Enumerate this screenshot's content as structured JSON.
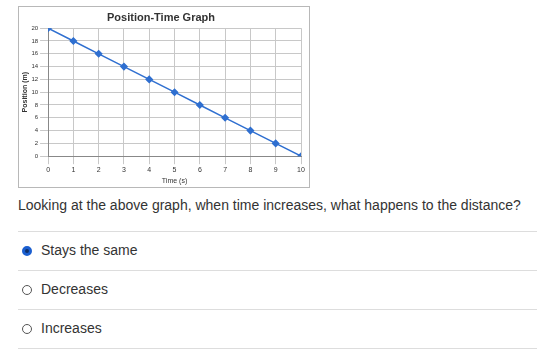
{
  "chart_data": {
    "type": "line",
    "title": "Position-Time Graph",
    "x_label": "Time (s)",
    "y_label": "Position (m)",
    "x": [
      0,
      1,
      2,
      3,
      4,
      5,
      6,
      7,
      8,
      9,
      10
    ],
    "values": [
      20,
      18,
      16,
      14,
      12,
      10,
      8,
      6,
      4,
      2,
      0
    ],
    "color": "#2f6fd0",
    "marker": "diamond",
    "line_style": "solid",
    "xlim": [
      0,
      10
    ],
    "xticks": [
      0,
      1,
      2,
      3,
      4,
      5,
      6,
      7,
      8,
      9,
      10
    ],
    "ylim": [
      0,
      20
    ],
    "yticks": [
      0,
      2,
      4,
      6,
      8,
      10,
      12,
      14,
      16,
      18,
      20
    ],
    "grid": true
  },
  "question": "Looking at the above graph, when time increases, what happens to the distance?",
  "options": [
    {
      "text": "Stays the same",
      "selected": true
    },
    {
      "text": "Decreases",
      "selected": false
    },
    {
      "text": "Increases",
      "selected": false
    }
  ]
}
